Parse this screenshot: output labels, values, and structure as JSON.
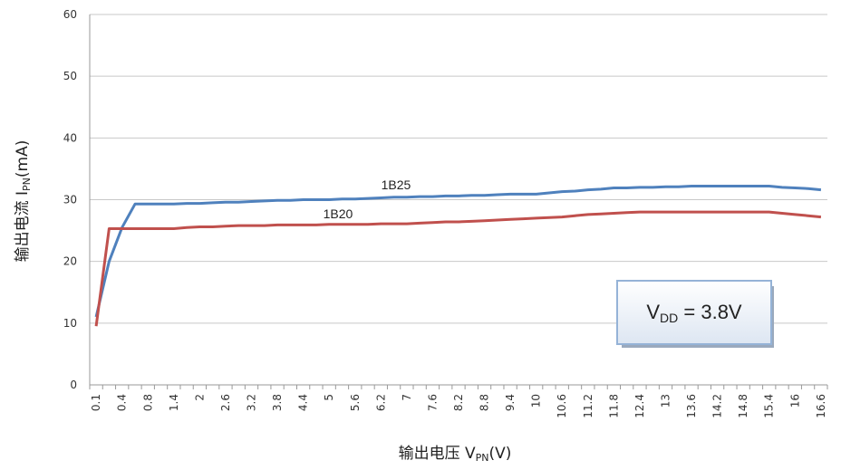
{
  "chart_data": {
    "type": "line",
    "categories": [
      "0.1",
      null,
      "0.4",
      null,
      "0.8",
      null,
      "1.4",
      null,
      "2",
      null,
      "2.6",
      null,
      "3.2",
      null,
      "3.8",
      null,
      "4.4",
      null,
      "5",
      null,
      "5.6",
      null,
      "6.2",
      null,
      "7",
      null,
      "7.6",
      null,
      "8.2",
      null,
      "8.8",
      null,
      "9.4",
      null,
      "10",
      null,
      "10.6",
      null,
      "11.2",
      null,
      "11.8",
      null,
      "12.4",
      null,
      "13",
      null,
      "13.6",
      null,
      "14.2",
      null,
      "14.8",
      null,
      "15.4",
      null,
      "16",
      null,
      "16.6"
    ],
    "series": [
      {
        "name": "1B25",
        "color": "#4f81bd",
        "values": [
          11,
          20,
          25.5,
          29.3,
          29.3,
          29.3,
          29.3,
          29.4,
          29.4,
          29.5,
          29.6,
          29.6,
          29.7,
          29.8,
          29.9,
          29.9,
          30.0,
          30.0,
          30.0,
          30.1,
          30.1,
          30.2,
          30.3,
          30.4,
          30.4,
          30.5,
          30.5,
          30.6,
          30.6,
          30.7,
          30.7,
          30.8,
          30.9,
          30.9,
          30.9,
          31.1,
          31.3,
          31.4,
          31.6,
          31.7,
          31.9,
          31.9,
          32.0,
          32.0,
          32.1,
          32.1,
          32.2,
          32.2,
          32.2,
          32.2,
          32.2,
          32.2,
          32.2,
          32.0,
          31.9,
          31.8,
          31.6
        ]
      },
      {
        "name": "1B20",
        "color": "#c0504d",
        "values": [
          9.5,
          25.3,
          25.3,
          25.3,
          25.3,
          25.3,
          25.3,
          25.5,
          25.6,
          25.6,
          25.7,
          25.8,
          25.8,
          25.8,
          25.9,
          25.9,
          25.9,
          25.9,
          26.0,
          26.0,
          26.0,
          26.0,
          26.1,
          26.1,
          26.1,
          26.2,
          26.3,
          26.4,
          26.4,
          26.5,
          26.6,
          26.7,
          26.8,
          26.9,
          27.0,
          27.1,
          27.2,
          27.4,
          27.6,
          27.7,
          27.8,
          27.9,
          28.0,
          28.0,
          28.0,
          28.0,
          28.0,
          28.0,
          28.0,
          28.0,
          28.0,
          28.0,
          28.0,
          27.8,
          27.6,
          27.4,
          27.2
        ]
      }
    ],
    "ylim": [
      0,
      60
    ],
    "yticks": [
      0,
      10,
      20,
      30,
      40,
      50,
      60
    ],
    "grid": true,
    "y_label": [
      "输出电流  I",
      "PN",
      "(mA)"
    ],
    "x_label": [
      "输出电压  V",
      "PN",
      "(V)"
    ],
    "annotation": [
      "V",
      "DD",
      " = 3.8V"
    ]
  }
}
